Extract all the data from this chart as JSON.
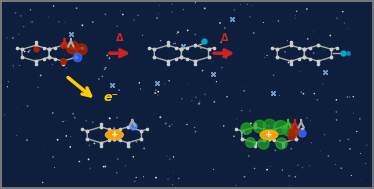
{
  "background_color": "#0d1f3c",
  "border_color": "#888888",
  "figsize": [
    3.74,
    1.89
  ],
  "dpi": 100,
  "bond_color": "#aaaaaa",
  "red_blob_color": "#aa2200",
  "blue_blob_color": "#3366ff",
  "green_blob_color": "#22aa22",
  "cyan_blob_color": "#00aacc",
  "yellow_color": "#ffcc00",
  "plus_color": "#ffaa00",
  "spin_red": "#cc2222",
  "spin_gray": "#aaaaaa",
  "spin_green": "#33bb33",
  "arrow_color": "#cc2222",
  "delta_label": "Δ",
  "electron_label": "e⁻"
}
